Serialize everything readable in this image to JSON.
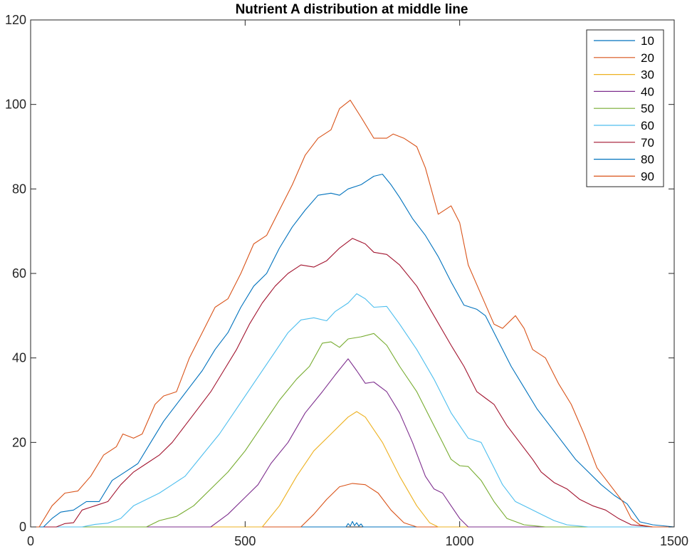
{
  "chart_data": {
    "type": "line",
    "title": "Nutrient A distribution at middle line",
    "xlabel": "",
    "ylabel": "",
    "xlim": [
      0,
      1500
    ],
    "ylim": [
      0,
      120
    ],
    "xticks": [
      0,
      500,
      1000,
      1500
    ],
    "yticks": [
      0,
      20,
      40,
      60,
      80,
      100,
      120
    ],
    "grid": false,
    "legend_position": "top-right",
    "series": [
      {
        "name": "10",
        "color": "#0072BD",
        "points": [
          [
            0,
            0
          ],
          [
            735,
            0
          ],
          [
            740,
            0.8
          ],
          [
            745,
            0.2
          ],
          [
            750,
            1.3
          ],
          [
            755,
            0.3
          ],
          [
            760,
            1.0
          ],
          [
            765,
            0.2
          ],
          [
            770,
            0.7
          ],
          [
            775,
            0
          ],
          [
            1500,
            0
          ]
        ]
      },
      {
        "name": "20",
        "color": "#D95319",
        "points": [
          [
            0,
            0
          ],
          [
            630,
            0
          ],
          [
            660,
            3
          ],
          [
            690,
            6.5
          ],
          [
            720,
            9.5
          ],
          [
            750,
            10.3
          ],
          [
            780,
            10
          ],
          [
            810,
            8
          ],
          [
            840,
            4
          ],
          [
            870,
            1
          ],
          [
            900,
            0
          ],
          [
            1500,
            0
          ]
        ]
      },
      {
        "name": "30",
        "color": "#EDB120",
        "points": [
          [
            0,
            0
          ],
          [
            540,
            0
          ],
          [
            580,
            5
          ],
          [
            620,
            12
          ],
          [
            660,
            18
          ],
          [
            700,
            22
          ],
          [
            740,
            26
          ],
          [
            760,
            27.3
          ],
          [
            780,
            26
          ],
          [
            820,
            20
          ],
          [
            860,
            12
          ],
          [
            900,
            5
          ],
          [
            930,
            1
          ],
          [
            950,
            0
          ],
          [
            1500,
            0
          ]
        ]
      },
      {
        "name": "40",
        "color": "#7E2F8E",
        "points": [
          [
            0,
            0
          ],
          [
            420,
            0
          ],
          [
            460,
            3
          ],
          [
            500,
            7
          ],
          [
            530,
            10
          ],
          [
            560,
            15
          ],
          [
            600,
            20
          ],
          [
            640,
            27
          ],
          [
            680,
            32
          ],
          [
            710,
            36
          ],
          [
            740,
            39.8
          ],
          [
            760,
            37
          ],
          [
            780,
            34
          ],
          [
            800,
            34.3
          ],
          [
            830,
            32
          ],
          [
            860,
            27
          ],
          [
            890,
            20
          ],
          [
            920,
            12
          ],
          [
            940,
            9
          ],
          [
            960,
            8
          ],
          [
            980,
            5
          ],
          [
            1000,
            2
          ],
          [
            1020,
            0
          ],
          [
            1500,
            0
          ]
        ]
      },
      {
        "name": "50",
        "color": "#77AC30",
        "points": [
          [
            0,
            0
          ],
          [
            270,
            0
          ],
          [
            300,
            1.5
          ],
          [
            340,
            2.5
          ],
          [
            380,
            5
          ],
          [
            420,
            9
          ],
          [
            460,
            13
          ],
          [
            500,
            18
          ],
          [
            540,
            24
          ],
          [
            580,
            30
          ],
          [
            620,
            35
          ],
          [
            650,
            38
          ],
          [
            680,
            43.5
          ],
          [
            700,
            43.8
          ],
          [
            720,
            42.5
          ],
          [
            740,
            44.5
          ],
          [
            770,
            45
          ],
          [
            800,
            45.8
          ],
          [
            830,
            43
          ],
          [
            860,
            38
          ],
          [
            900,
            32
          ],
          [
            940,
            24
          ],
          [
            960,
            20
          ],
          [
            980,
            16
          ],
          [
            1000,
            14.5
          ],
          [
            1020,
            14.3
          ],
          [
            1050,
            11
          ],
          [
            1080,
            6
          ],
          [
            1110,
            2
          ],
          [
            1150,
            0.5
          ],
          [
            1200,
            0
          ],
          [
            1500,
            0
          ]
        ]
      },
      {
        "name": "60",
        "color": "#4DBEEE",
        "points": [
          [
            0,
            0
          ],
          [
            120,
            0
          ],
          [
            150,
            0.6
          ],
          [
            180,
            0.9
          ],
          [
            210,
            2
          ],
          [
            240,
            5
          ],
          [
            270,
            6.5
          ],
          [
            300,
            8
          ],
          [
            330,
            10
          ],
          [
            360,
            12
          ],
          [
            400,
            17
          ],
          [
            440,
            22
          ],
          [
            480,
            28
          ],
          [
            520,
            34
          ],
          [
            560,
            40
          ],
          [
            600,
            46
          ],
          [
            630,
            49
          ],
          [
            660,
            49.5
          ],
          [
            690,
            48.8
          ],
          [
            710,
            51
          ],
          [
            740,
            53
          ],
          [
            760,
            55.2
          ],
          [
            780,
            54
          ],
          [
            800,
            52
          ],
          [
            830,
            52.2
          ],
          [
            860,
            48
          ],
          [
            900,
            42
          ],
          [
            940,
            35
          ],
          [
            980,
            27
          ],
          [
            1020,
            21
          ],
          [
            1050,
            20
          ],
          [
            1080,
            14
          ],
          [
            1100,
            10
          ],
          [
            1130,
            6
          ],
          [
            1160,
            4.5
          ],
          [
            1190,
            3
          ],
          [
            1220,
            1.5
          ],
          [
            1250,
            0.5
          ],
          [
            1300,
            0
          ],
          [
            1500,
            0
          ]
        ]
      },
      {
        "name": "70",
        "color": "#A2142F",
        "points": [
          [
            0,
            0
          ],
          [
            60,
            0
          ],
          [
            80,
            0.8
          ],
          [
            100,
            1
          ],
          [
            120,
            4
          ],
          [
            150,
            5
          ],
          [
            180,
            6
          ],
          [
            210,
            10
          ],
          [
            240,
            13
          ],
          [
            270,
            15
          ],
          [
            300,
            17
          ],
          [
            330,
            20
          ],
          [
            360,
            24
          ],
          [
            390,
            28
          ],
          [
            420,
            32
          ],
          [
            450,
            37
          ],
          [
            480,
            42
          ],
          [
            510,
            48
          ],
          [
            540,
            53
          ],
          [
            570,
            57
          ],
          [
            600,
            60
          ],
          [
            630,
            62
          ],
          [
            660,
            61.5
          ],
          [
            690,
            63
          ],
          [
            720,
            66
          ],
          [
            750,
            68.3
          ],
          [
            780,
            67
          ],
          [
            800,
            65
          ],
          [
            830,
            64.5
          ],
          [
            860,
            62
          ],
          [
            900,
            57
          ],
          [
            940,
            50
          ],
          [
            980,
            43
          ],
          [
            1010,
            38
          ],
          [
            1040,
            32
          ],
          [
            1060,
            30.5
          ],
          [
            1080,
            29
          ],
          [
            1110,
            24
          ],
          [
            1140,
            20
          ],
          [
            1170,
            16
          ],
          [
            1190,
            13
          ],
          [
            1220,
            10.5
          ],
          [
            1250,
            9
          ],
          [
            1280,
            6.5
          ],
          [
            1310,
            5
          ],
          [
            1340,
            4
          ],
          [
            1370,
            2
          ],
          [
            1400,
            0.5
          ],
          [
            1450,
            0
          ],
          [
            1500,
            0
          ]
        ]
      },
      {
        "name": "80",
        "color": "#0072BD",
        "points": [
          [
            0,
            0
          ],
          [
            30,
            0
          ],
          [
            50,
            2
          ],
          [
            70,
            3.5
          ],
          [
            100,
            4
          ],
          [
            130,
            6
          ],
          [
            160,
            6
          ],
          [
            190,
            11
          ],
          [
            220,
            13
          ],
          [
            250,
            15
          ],
          [
            280,
            20
          ],
          [
            310,
            25
          ],
          [
            340,
            29
          ],
          [
            370,
            33
          ],
          [
            400,
            37
          ],
          [
            430,
            42
          ],
          [
            460,
            46
          ],
          [
            490,
            52
          ],
          [
            520,
            57
          ],
          [
            550,
            60
          ],
          [
            580,
            66
          ],
          [
            610,
            71
          ],
          [
            640,
            75
          ],
          [
            670,
            78.5
          ],
          [
            700,
            79
          ],
          [
            720,
            78.5
          ],
          [
            740,
            80
          ],
          [
            770,
            81
          ],
          [
            800,
            83
          ],
          [
            820,
            83.5
          ],
          [
            840,
            81
          ],
          [
            860,
            78
          ],
          [
            890,
            73
          ],
          [
            920,
            69
          ],
          [
            950,
            64
          ],
          [
            980,
            58
          ],
          [
            1010,
            52.5
          ],
          [
            1040,
            51.5
          ],
          [
            1060,
            50
          ],
          [
            1090,
            44
          ],
          [
            1120,
            38
          ],
          [
            1150,
            33
          ],
          [
            1180,
            28
          ],
          [
            1210,
            24
          ],
          [
            1240,
            20
          ],
          [
            1270,
            16
          ],
          [
            1300,
            13
          ],
          [
            1330,
            10
          ],
          [
            1360,
            7.5
          ],
          [
            1390,
            5.5
          ],
          [
            1420,
            1.2
          ],
          [
            1450,
            0.5
          ],
          [
            1500,
            0
          ]
        ]
      },
      {
        "name": "90",
        "color": "#D95319",
        "points": [
          [
            0,
            0
          ],
          [
            20,
            0
          ],
          [
            50,
            5
          ],
          [
            80,
            8
          ],
          [
            110,
            8.5
          ],
          [
            140,
            12
          ],
          [
            170,
            17
          ],
          [
            200,
            19
          ],
          [
            215,
            22
          ],
          [
            240,
            21
          ],
          [
            260,
            22
          ],
          [
            290,
            29
          ],
          [
            310,
            31
          ],
          [
            340,
            32
          ],
          [
            370,
            40
          ],
          [
            400,
            46
          ],
          [
            430,
            52
          ],
          [
            460,
            54
          ],
          [
            490,
            60
          ],
          [
            520,
            67
          ],
          [
            550,
            69
          ],
          [
            580,
            75
          ],
          [
            610,
            81
          ],
          [
            640,
            88
          ],
          [
            670,
            92
          ],
          [
            700,
            94
          ],
          [
            720,
            99
          ],
          [
            745,
            101
          ],
          [
            770,
            97
          ],
          [
            800,
            92
          ],
          [
            830,
            92
          ],
          [
            845,
            93
          ],
          [
            870,
            92
          ],
          [
            900,
            90
          ],
          [
            920,
            85
          ],
          [
            950,
            74
          ],
          [
            980,
            76
          ],
          [
            1000,
            72
          ],
          [
            1020,
            62
          ],
          [
            1050,
            55
          ],
          [
            1080,
            48
          ],
          [
            1100,
            47
          ],
          [
            1130,
            50
          ],
          [
            1150,
            47
          ],
          [
            1170,
            42
          ],
          [
            1200,
            40
          ],
          [
            1230,
            34
          ],
          [
            1260,
            29
          ],
          [
            1290,
            22
          ],
          [
            1320,
            14
          ],
          [
            1350,
            10
          ],
          [
            1380,
            6
          ],
          [
            1400,
            2
          ],
          [
            1420,
            0.5
          ],
          [
            1450,
            0
          ],
          [
            1500,
            0
          ]
        ]
      }
    ]
  }
}
